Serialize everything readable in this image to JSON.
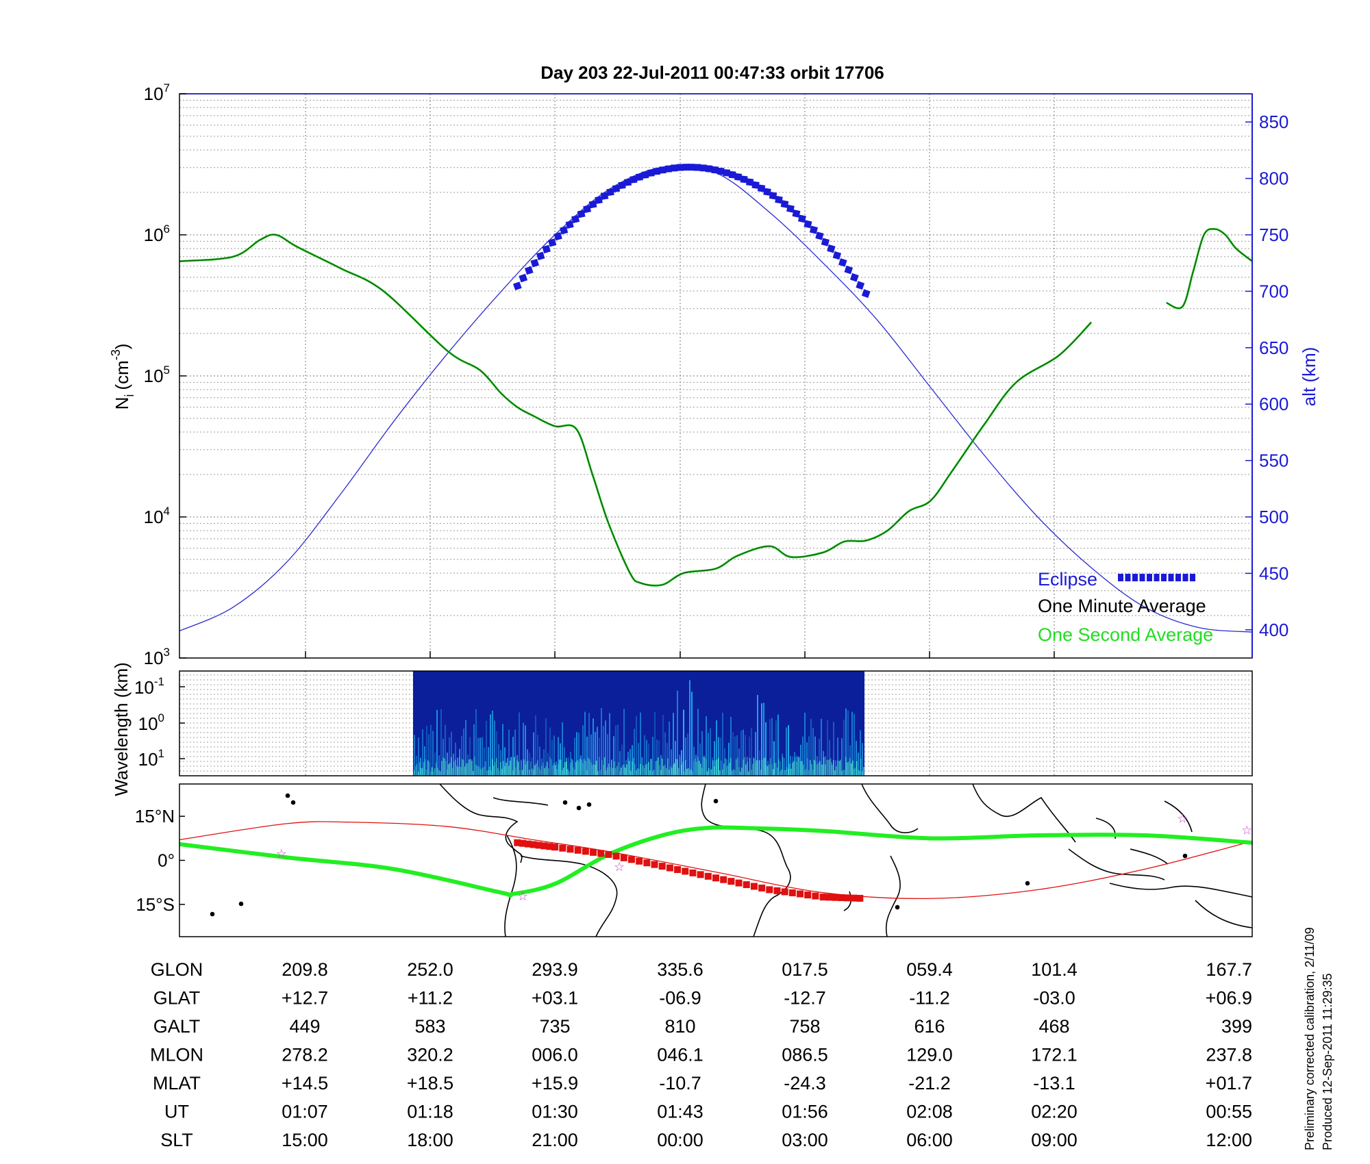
{
  "title": "Day 203  22-Jul-2011 00:47:33   orbit 17706",
  "colors": {
    "eclipse": "#1a1ad6",
    "one_minute": "#000000",
    "one_second": "#22dd22",
    "altitude_curve": "#2a2ad0",
    "density_curve": "#1d5a1d",
    "track_red": "#e01010",
    "track_green": "#22ee22",
    "star": "#d040d0",
    "spectrogram_bg": "#0b1f9a",
    "spectrogram_fg": "#22c8ff"
  },
  "chart_data": [
    {
      "type": "line",
      "name": "ion-density-panel",
      "ylabel_main": "N",
      "ylabel_sub": "i",
      "ylabel_unit": "(cm",
      "ylabel_exp": "-3",
      "ylabel_close": ")",
      "y_scale": "log",
      "ylim": [
        1000,
        10000000
      ],
      "y_ticks": [
        {
          "base": "10",
          "exp": "3"
        },
        {
          "base": "10",
          "exp": "4"
        },
        {
          "base": "10",
          "exp": "5"
        },
        {
          "base": "10",
          "exp": "6"
        },
        {
          "base": "10",
          "exp": "7"
        }
      ],
      "y2label": "alt (km)",
      "y2lim": [
        375,
        875
      ],
      "y2_ticks": [
        "400",
        "450",
        "500",
        "550",
        "600",
        "650",
        "700",
        "750",
        "800",
        "850"
      ],
      "x_ticks_ut": [
        "01:07",
        "01:18",
        "01:30",
        "01:43",
        "01:56",
        "02:08",
        "02:20"
      ],
      "grid": true,
      "legend_position": "bottom-right",
      "legend": [
        {
          "label": "Eclipse",
          "color_key": "eclipse"
        },
        {
          "label": "One Minute Average",
          "color_key": "one_minute"
        },
        {
          "label": "One Second Average",
          "color_key": "one_second"
        }
      ],
      "x_frac": [
        0,
        0.05,
        0.075,
        0.09,
        0.11,
        0.15,
        0.19,
        0.25,
        0.28,
        0.3,
        0.315,
        0.33,
        0.35,
        0.37,
        0.385,
        0.4,
        0.42,
        0.43,
        0.45,
        0.47,
        0.5,
        0.52,
        0.55,
        0.57,
        0.6,
        0.62,
        0.64,
        0.66,
        0.68,
        0.7,
        0.72,
        0.75,
        0.78,
        0.82,
        0.85
      ],
      "density": [
        650000,
        700000,
        920000,
        1000000,
        820000,
        580000,
        400000,
        150000,
        110000,
        75000,
        60000,
        52000,
        44000,
        42000,
        20000,
        9000,
        4000,
        3400,
        3300,
        4000,
        4300,
        5300,
        6200,
        5200,
        5600,
        6700,
        6800,
        8000,
        11000,
        13000,
        21000,
        45000,
        90000,
        140000,
        240000
      ],
      "density_segment2_x_frac": [
        0.92,
        0.935,
        0.945,
        0.955,
        0.965,
        0.975,
        0.985,
        1.0
      ],
      "density_segment2": [
        330000,
        310000,
        550000,
        1000000,
        1100000,
        1000000,
        800000,
        650000
      ],
      "altitude_x_frac": [
        0,
        0.05,
        0.1,
        0.15,
        0.2,
        0.25,
        0.3,
        0.35,
        0.4,
        0.45,
        0.5,
        0.55,
        0.6,
        0.65,
        0.7,
        0.75,
        0.8,
        0.85,
        0.9,
        0.95,
        1.0
      ],
      "altitude_km": [
        399,
        420,
        460,
        520,
        585,
        645,
        700,
        750,
        790,
        810,
        805,
        770,
        725,
        675,
        615,
        555,
        500,
        455,
        420,
        402,
        398
      ],
      "eclipse_x_frac": [
        0.315,
        0.64
      ]
    },
    {
      "type": "heatmap",
      "name": "wavelength-spectrogram",
      "ylabel": "Wavelength (km)",
      "y_ticks": [
        {
          "base": "10",
          "exp": "-1"
        },
        {
          "base": "10",
          "exp": "0"
        },
        {
          "base": "10",
          "exp": "1"
        }
      ],
      "data_x_frac": [
        0.218,
        0.638
      ]
    },
    {
      "type": "line",
      "name": "ground-track-map",
      "y_ticks": [
        "15°N",
        "0°",
        "15°S"
      ],
      "ylim": [
        -26,
        26
      ],
      "orbit_red_lon_frac": [
        0,
        0.1,
        0.16,
        0.25,
        0.33,
        0.4,
        0.5,
        0.6,
        0.7,
        0.8,
        0.9,
        1.0
      ],
      "orbit_red_lat": [
        7,
        12.5,
        13,
        11.5,
        7,
        3,
        -4,
        -11,
        -13,
        -10,
        -3,
        6.5
      ],
      "eclipse_segment_lon_frac": [
        0.315,
        0.35,
        0.4,
        0.45,
        0.5,
        0.55,
        0.6,
        0.64
      ],
      "eclipse_segment_lat": [
        6,
        4.5,
        2,
        -2,
        -6,
        -10,
        -12.5,
        -13
      ],
      "magnetic_lon_frac": [
        0,
        0.1,
        0.2,
        0.3,
        0.31,
        0.35,
        0.4,
        0.45,
        0.49,
        0.53,
        0.6,
        0.7,
        0.8,
        0.9,
        1.0
      ],
      "magnetic_lat": [
        5.5,
        1,
        -3,
        -11,
        -11.5,
        -8,
        2,
        8.5,
        11,
        11,
        10,
        7.5,
        8.5,
        8.5,
        6
      ],
      "stars_lon_frac": [
        0.095,
        0.32,
        0.41,
        0.935,
        0.995
      ],
      "stars_lat": [
        2.5,
        -12,
        -2,
        14.5,
        10.5
      ]
    }
  ],
  "table": {
    "rows": [
      {
        "label": "GLON",
        "values": [
          "209.8",
          "252.0",
          "293.9",
          "335.6",
          "017.5",
          "059.4",
          "101.4",
          "167.7"
        ]
      },
      {
        "label": "GLAT",
        "values": [
          "+12.7",
          "+11.2",
          "+03.1",
          "-06.9",
          "-12.7",
          "-11.2",
          "-03.0",
          "+06.9"
        ]
      },
      {
        "label": "GALT",
        "values": [
          "449",
          "583",
          "735",
          "810",
          "758",
          "616",
          "468",
          "399"
        ]
      },
      {
        "label": "MLON",
        "values": [
          "278.2",
          "320.2",
          "006.0",
          "046.1",
          "086.5",
          "129.0",
          "172.1",
          "237.8"
        ]
      },
      {
        "label": "MLAT",
        "values": [
          "+14.5",
          "+18.5",
          "+15.9",
          "-10.7",
          "-24.3",
          "-21.2",
          "-13.1",
          "+01.7"
        ]
      },
      {
        "label": "UT",
        "values": [
          "01:07",
          "01:18",
          "01:30",
          "01:43",
          "01:56",
          "02:08",
          "02:20",
          "00:55"
        ]
      },
      {
        "label": "SLT",
        "values": [
          "15:00",
          "18:00",
          "21:00",
          "00:00",
          "03:00",
          "06:00",
          "09:00",
          "12:00"
        ]
      }
    ]
  },
  "side_note": {
    "line1": "Preliminary corrected calibration, 2/11/09",
    "line2": "Produced 12-Sep-2011 11:29:35"
  }
}
